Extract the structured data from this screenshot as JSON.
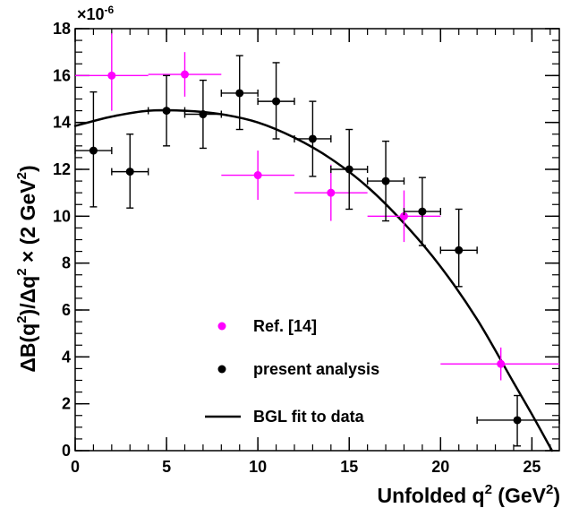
{
  "chart_data": {
    "type": "scatter",
    "xlabel": "Unfolded q",
    "xlabel_sup": "2",
    "xlabel_unit": " (GeV",
    "xlabel_unit_sup": "2",
    "xlabel_unit_end": ")",
    "ylabel_parts": [
      "ΔB(q",
      "2",
      ")/Δq",
      "2",
      " × (2 GeV",
      "2",
      ")"
    ],
    "y_multiplier_base": "×10",
    "y_multiplier_exp": "-6",
    "xlim": [
      0,
      26.5
    ],
    "ylim": [
      0,
      18
    ],
    "x_ticks": [
      0,
      5,
      10,
      15,
      20,
      25
    ],
    "y_ticks": [
      0,
      2,
      4,
      6,
      8,
      10,
      12,
      14,
      16,
      18
    ],
    "x_minor_step": 1,
    "y_minor_step": 0.5,
    "grid": false,
    "legend_position": "bottom-center",
    "series": [
      {
        "name": "Ref. [14]",
        "kind": "points",
        "color": "#ff00ff",
        "points": [
          {
            "x": 2,
            "y": 16.0,
            "xlo": 0,
            "xhi": 4,
            "ylo": 14.5,
            "yhi": 17.8
          },
          {
            "x": 6,
            "y": 16.05,
            "xlo": 4,
            "xhi": 8,
            "ylo": 15.1,
            "yhi": 17.0
          },
          {
            "x": 10,
            "y": 11.75,
            "xlo": 8,
            "xhi": 12,
            "ylo": 10.7,
            "yhi": 12.8
          },
          {
            "x": 14,
            "y": 11.0,
            "xlo": 12,
            "xhi": 16,
            "ylo": 9.8,
            "yhi": 12.2
          },
          {
            "x": 18,
            "y": 10.0,
            "xlo": 16,
            "xhi": 20,
            "ylo": 8.9,
            "yhi": 11.1
          },
          {
            "x": 23.3,
            "y": 3.7,
            "xlo": 20,
            "xhi": 26.5,
            "ylo": 3.0,
            "yhi": 4.4
          }
        ]
      },
      {
        "name": "present analysis",
        "kind": "points",
        "color": "#000000",
        "points": [
          {
            "x": 1,
            "y": 12.8,
            "xlo": 0,
            "xhi": 2,
            "ylo": 10.4,
            "yhi": 15.3
          },
          {
            "x": 3,
            "y": 11.9,
            "xlo": 2,
            "xhi": 4,
            "ylo": 10.35,
            "yhi": 13.5
          },
          {
            "x": 5,
            "y": 14.5,
            "xlo": 4,
            "xhi": 6,
            "ylo": 13.0,
            "yhi": 16.0
          },
          {
            "x": 7,
            "y": 14.35,
            "xlo": 6,
            "xhi": 8,
            "ylo": 12.9,
            "yhi": 15.8
          },
          {
            "x": 9,
            "y": 15.25,
            "xlo": 8,
            "xhi": 10,
            "ylo": 13.7,
            "yhi": 16.85
          },
          {
            "x": 11,
            "y": 14.9,
            "xlo": 10,
            "xhi": 12,
            "ylo": 13.3,
            "yhi": 16.55
          },
          {
            "x": 13,
            "y": 13.3,
            "xlo": 12,
            "xhi": 14,
            "ylo": 11.7,
            "yhi": 14.9
          },
          {
            "x": 15,
            "y": 12.0,
            "xlo": 14,
            "xhi": 16,
            "ylo": 10.3,
            "yhi": 13.7
          },
          {
            "x": 17,
            "y": 11.5,
            "xlo": 16,
            "xhi": 18,
            "ylo": 9.8,
            "yhi": 13.2
          },
          {
            "x": 19,
            "y": 10.2,
            "xlo": 18,
            "xhi": 20,
            "ylo": 8.75,
            "yhi": 11.65
          },
          {
            "x": 21,
            "y": 8.55,
            "xlo": 20,
            "xhi": 22,
            "ylo": 7.0,
            "yhi": 10.3
          },
          {
            "x": 24.2,
            "y": 1.3,
            "xlo": 22,
            "xhi": 26.5,
            "ylo": 0.2,
            "yhi": 2.35
          }
        ]
      },
      {
        "name": "BGL fit to data",
        "kind": "line",
        "color": "#000000",
        "x": [
          0,
          2,
          4,
          6,
          8,
          10,
          12,
          14,
          16,
          18,
          20,
          22,
          24,
          25,
          26.1
        ],
        "y": [
          13.85,
          14.25,
          14.5,
          14.5,
          14.35,
          14.0,
          13.35,
          12.45,
          11.25,
          9.7,
          7.85,
          5.6,
          2.9,
          1.55,
          0.0
        ]
      }
    ]
  }
}
